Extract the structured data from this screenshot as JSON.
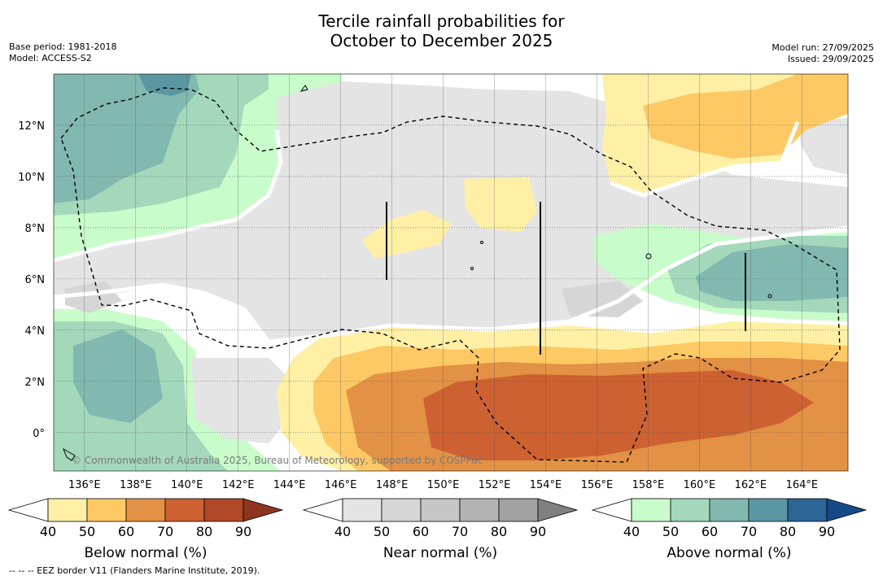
{
  "header": {
    "title_line1": "Tercile rainfall probabilities for",
    "title_line2": "October to December 2025",
    "base_period": "Base period: 1981-2018",
    "model": "Model: ACCESS-S2",
    "model_run": "Model run: 27/09/2025",
    "issued": "Issued: 29/09/2025"
  },
  "map": {
    "lon_range": [
      134.8,
      165.8
    ],
    "lat_range": [
      -1.5,
      14.0
    ],
    "lon_ticks": [
      136,
      138,
      140,
      142,
      144,
      146,
      148,
      150,
      152,
      154,
      156,
      158,
      160,
      162,
      164
    ],
    "lon_labels": [
      "136°E",
      "138°E",
      "140°E",
      "142°E",
      "144°E",
      "146°E",
      "148°E",
      "150°E",
      "152°E",
      "154°E",
      "156°E",
      "158°E",
      "160°E",
      "162°E",
      "164°E"
    ],
    "lat_ticks": [
      0,
      2,
      4,
      6,
      8,
      10,
      12
    ],
    "lat_labels": [
      "0°",
      "2°N",
      "4°N",
      "6°N",
      "8°N",
      "10°N",
      "12°N"
    ],
    "copyright": "© Commonwealth of Australia 2025, Bureau of Meteorology, supported by COSPPac"
  },
  "colorbars": [
    {
      "title": "Below normal (%)",
      "ticks": [
        "40",
        "50",
        "60",
        "70",
        "80",
        "90"
      ],
      "colors": [
        "#fff0a6",
        "#fdc964",
        "#e39144",
        "#cd6131",
        "#b04828"
      ],
      "extend_color": "#8e3520"
    },
    {
      "title": "Near normal (%)",
      "ticks": [
        "40",
        "50",
        "60",
        "70",
        "80",
        "90"
      ],
      "colors": [
        "#e4e4e4",
        "#d6d6d6",
        "#c6c6c6",
        "#b3b3b3",
        "#a2a2a2"
      ],
      "extend_color": "#808080"
    },
    {
      "title": "Above normal (%)",
      "ticks": [
        "40",
        "50",
        "60",
        "70",
        "80",
        "90"
      ],
      "colors": [
        "#c9fccb",
        "#a3d8bb",
        "#81b8b0",
        "#5b97a3",
        "#2e6597"
      ],
      "extend_color": "#154a86"
    }
  ],
  "footnote": "-- -- -- EEZ border V11 (Flanders Marine Institute, 2019)."
}
